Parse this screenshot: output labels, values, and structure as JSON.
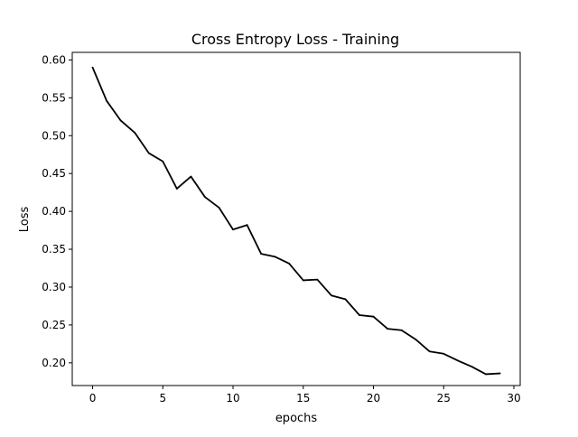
{
  "chart_data": {
    "type": "line",
    "title": "Cross Entropy Loss - Training",
    "xlabel": "epochs",
    "ylabel": "Loss",
    "xlim": [
      -1.45,
      30.45
    ],
    "ylim": [
      0.17,
      0.61
    ],
    "xticks": [
      0,
      5,
      10,
      15,
      20,
      25,
      30
    ],
    "xtick_labels": [
      "0",
      "5",
      "10",
      "15",
      "20",
      "25",
      "30"
    ],
    "yticks": [
      0.2,
      0.25,
      0.3,
      0.35,
      0.4,
      0.45,
      0.5,
      0.55,
      0.6
    ],
    "ytick_labels": [
      "0.20",
      "0.25",
      "0.30",
      "0.35",
      "0.40",
      "0.45",
      "0.50",
      "0.55",
      "0.60"
    ],
    "grid": false,
    "legend": "none",
    "series": [
      {
        "color": "#000000",
        "x": [
          0,
          1,
          2,
          3,
          4,
          5,
          6,
          7,
          8,
          9,
          10,
          11,
          12,
          13,
          14,
          15,
          16,
          17,
          18,
          19,
          20,
          21,
          22,
          23,
          24,
          25,
          26,
          27,
          28,
          29
        ],
        "y": [
          0.59,
          0.546,
          0.52,
          0.504,
          0.477,
          0.466,
          0.43,
          0.446,
          0.419,
          0.405,
          0.376,
          0.382,
          0.344,
          0.34,
          0.331,
          0.309,
          0.31,
          0.289,
          0.284,
          0.263,
          0.261,
          0.245,
          0.243,
          0.231,
          0.215,
          0.212,
          0.203,
          0.195,
          0.185,
          0.186
        ]
      }
    ]
  }
}
